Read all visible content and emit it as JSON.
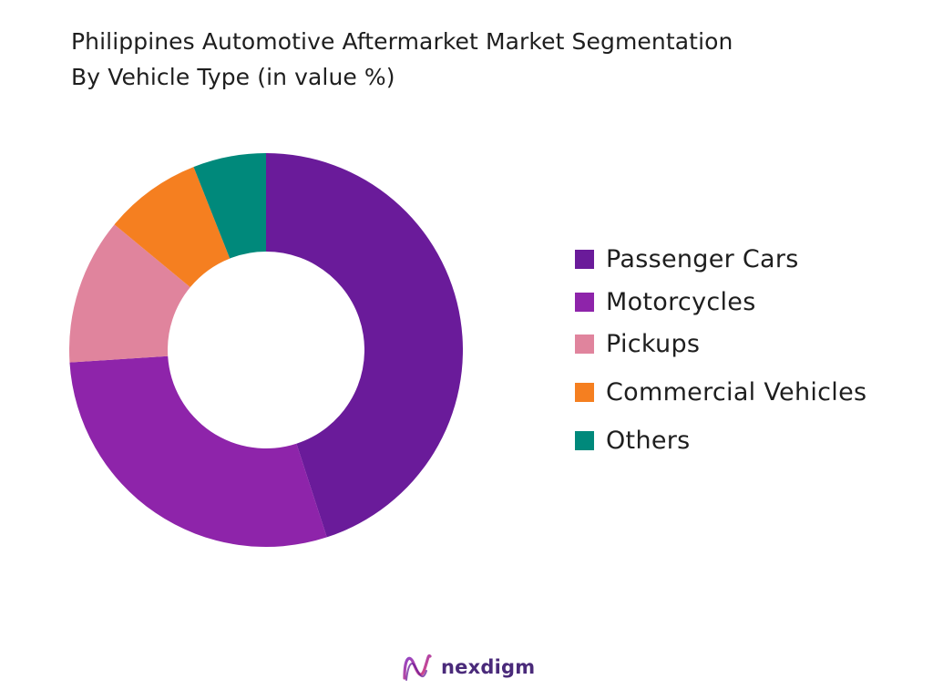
{
  "title": {
    "line1": "Philippines Automotive Aftermarket Market Segmentation",
    "line2": "By Vehicle Type (in value %)"
  },
  "chart_data": {
    "type": "pie",
    "variant": "donut",
    "title": "Philippines Automotive Aftermarket Market Segmentation By Vehicle Type (in value %)",
    "categories": [
      "Passenger Cars",
      "Motorcycles",
      "Pickups",
      "Commercial Vehicles",
      "Others"
    ],
    "values": [
      45,
      29,
      12,
      8,
      6
    ],
    "colors": [
      "#6a1b9a",
      "#8e24aa",
      "#e0849d",
      "#f57f20",
      "#00897b"
    ],
    "start_angle_deg": 0,
    "direction": "clockwise",
    "legend_position": "right"
  },
  "logo": {
    "text": "nexdigm",
    "icon": "nexdigm-wave-logo-icon"
  }
}
